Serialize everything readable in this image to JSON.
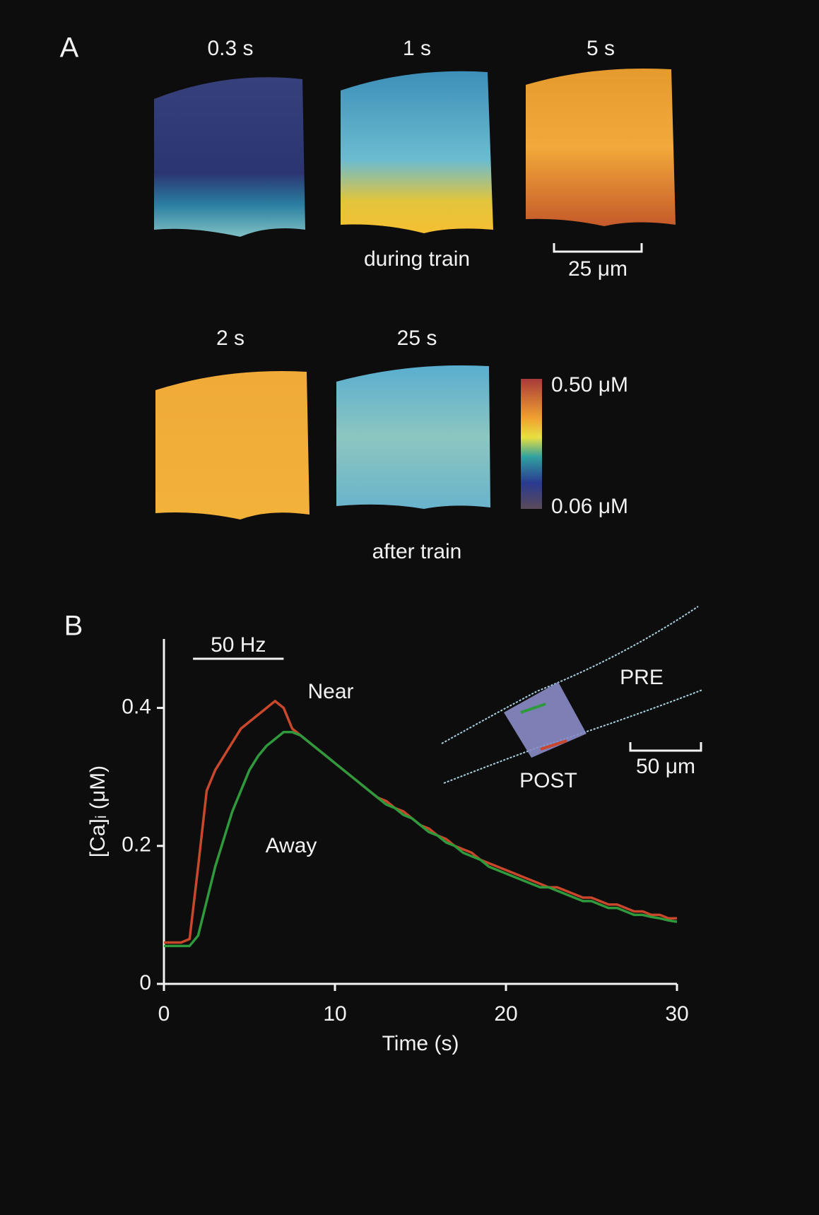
{
  "panel_a": {
    "label": "A",
    "during": {
      "times": [
        "0.3 s",
        "1 s",
        "5 s"
      ],
      "caption": "during train"
    },
    "after": {
      "times": [
        "2 s",
        "25 s"
      ],
      "caption": "after train"
    },
    "scale_bar": "25 μm",
    "colorbar": {
      "max_label": "0.50 μM",
      "min_label": "0.06 μM"
    }
  },
  "chart_data": {
    "type": "line",
    "panel_label": "B",
    "x_label": "Time (s)",
    "y_label": "[Ca]ᵢ (μM)",
    "xlim": [
      0,
      30
    ],
    "xticks": [
      0,
      10,
      20,
      30
    ],
    "ylim": [
      0,
      0.5
    ],
    "yticks": [
      0,
      0.2,
      0.4
    ],
    "stimulus": {
      "label": "50 Hz",
      "start": 1.7,
      "end": 7.0
    },
    "x": [
      0,
      0.5,
      1,
      1.5,
      2,
      2.5,
      3,
      3.5,
      4,
      4.5,
      5,
      5.5,
      6,
      6.5,
      7,
      7.5,
      8,
      8.5,
      9,
      9.5,
      10,
      10.5,
      11,
      11.5,
      12,
      12.5,
      13,
      13.5,
      14,
      14.5,
      15,
      15.5,
      16,
      16.5,
      17,
      17.5,
      18,
      18.5,
      19,
      19.5,
      20,
      20.5,
      21,
      21.5,
      22,
      22.5,
      23,
      23.5,
      24,
      24.5,
      25,
      25.5,
      26,
      26.5,
      27,
      27.5,
      28,
      28.5,
      29,
      29.5,
      30
    ],
    "series": [
      {
        "name": "Near",
        "color": "#c9472b",
        "values": [
          0.06,
          0.06,
          0.06,
          0.065,
          0.17,
          0.28,
          0.31,
          0.33,
          0.35,
          0.37,
          0.38,
          0.39,
          0.4,
          0.41,
          0.4,
          0.37,
          0.36,
          0.35,
          0.34,
          0.33,
          0.32,
          0.31,
          0.3,
          0.29,
          0.28,
          0.27,
          0.265,
          0.255,
          0.25,
          0.24,
          0.23,
          0.225,
          0.215,
          0.21,
          0.2,
          0.195,
          0.19,
          0.18,
          0.175,
          0.17,
          0.165,
          0.16,
          0.155,
          0.15,
          0.145,
          0.14,
          0.14,
          0.135,
          0.13,
          0.125,
          0.125,
          0.12,
          0.115,
          0.115,
          0.11,
          0.105,
          0.105,
          0.1,
          0.1,
          0.095,
          0.095
        ]
      },
      {
        "name": "Away",
        "color": "#2f9a3c",
        "values": [
          0.055,
          0.055,
          0.055,
          0.055,
          0.07,
          0.12,
          0.17,
          0.21,
          0.25,
          0.28,
          0.31,
          0.33,
          0.345,
          0.355,
          0.365,
          0.365,
          0.36,
          0.35,
          0.34,
          0.33,
          0.32,
          0.31,
          0.3,
          0.29,
          0.28,
          0.27,
          0.26,
          0.255,
          0.245,
          0.24,
          0.23,
          0.22,
          0.215,
          0.205,
          0.2,
          0.19,
          0.185,
          0.18,
          0.17,
          0.165,
          0.16,
          0.155,
          0.15,
          0.145,
          0.14,
          0.14,
          0.135,
          0.13,
          0.125,
          0.12,
          0.12,
          0.115,
          0.11,
          0.11,
          0.105,
          0.1,
          0.1,
          0.097,
          0.095,
          0.092,
          0.09
        ]
      }
    ],
    "inset": {
      "pre": "PRE",
      "post": "POST",
      "scale_bar": "50 μm"
    }
  }
}
